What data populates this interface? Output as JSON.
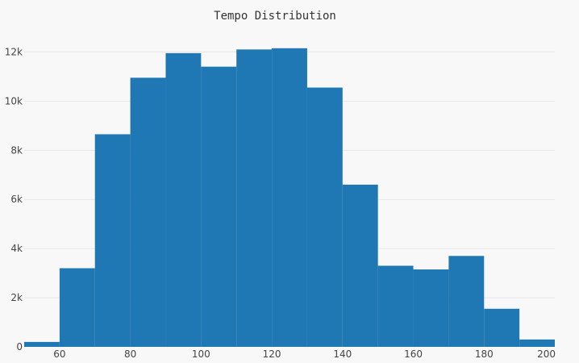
{
  "chart_data": {
    "type": "bar",
    "title": "Tempo Distribution",
    "xlabel": "",
    "ylabel": "",
    "bins": [
      {
        "start": 50,
        "end": 60,
        "value": 200
      },
      {
        "start": 60,
        "end": 70,
        "value": 3200
      },
      {
        "start": 70,
        "end": 80,
        "value": 8650
      },
      {
        "start": 80,
        "end": 90,
        "value": 10950
      },
      {
        "start": 90,
        "end": 100,
        "value": 11950
      },
      {
        "start": 100,
        "end": 110,
        "value": 11400
      },
      {
        "start": 110,
        "end": 120,
        "value": 12100
      },
      {
        "start": 120,
        "end": 130,
        "value": 12150
      },
      {
        "start": 130,
        "end": 140,
        "value": 10550
      },
      {
        "start": 140,
        "end": 150,
        "value": 6600
      },
      {
        "start": 150,
        "end": 160,
        "value": 3300
      },
      {
        "start": 160,
        "end": 170,
        "value": 3150
      },
      {
        "start": 170,
        "end": 180,
        "value": 3700
      },
      {
        "start": 180,
        "end": 190,
        "value": 1550
      },
      {
        "start": 190,
        "end": 200,
        "value": 300
      }
    ],
    "xlim": [
      50,
      200
    ],
    "ylim": [
      0,
      12800
    ],
    "x_ticks": [
      60,
      80,
      100,
      120,
      140,
      160,
      180,
      200
    ],
    "x_tick_labels": [
      "60",
      "80",
      "100",
      "120",
      "140",
      "160",
      "180",
      "200"
    ],
    "y_ticks": [
      0,
      2000,
      4000,
      6000,
      8000,
      10000,
      12000
    ],
    "y_tick_labels": [
      "0",
      "2k",
      "4k",
      "6k",
      "8k",
      "10k",
      "12k"
    ],
    "bar_color": "#1f77b4",
    "background": "#f8f8f8",
    "grid": true,
    "grid_color": "#e6e6e6"
  }
}
